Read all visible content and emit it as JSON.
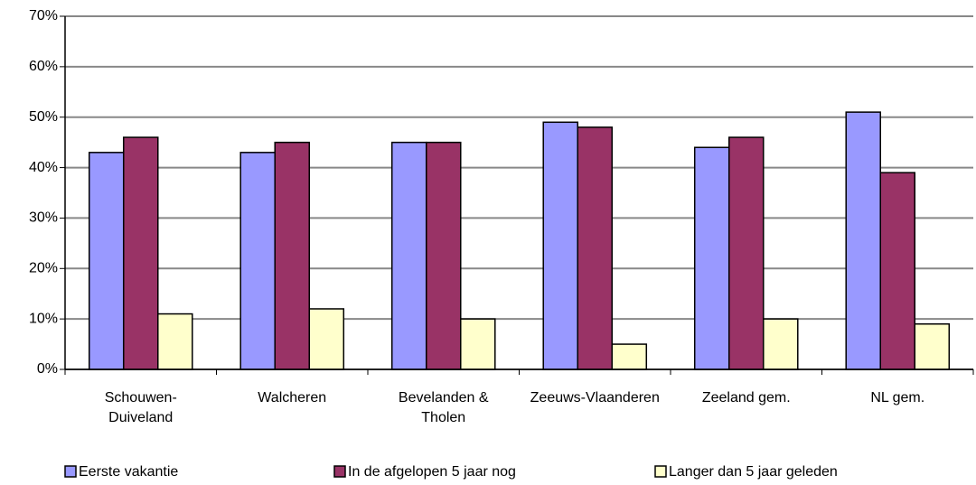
{
  "chart_data": {
    "type": "bar",
    "categories": [
      "Schouwen-Duiveland",
      "Walcheren",
      "Bevelanden & Tholen",
      "Zeeuws-Vlaanderen",
      "Zeeland gem.",
      "NL gem."
    ],
    "series": [
      {
        "name": "Eerste vakantie",
        "color": "#9999ff",
        "values": [
          43,
          43,
          45,
          49,
          44,
          51
        ]
      },
      {
        "name": "In de afgelopen 5 jaar nog",
        "color": "#993366",
        "values": [
          46,
          45,
          45,
          48,
          46,
          39
        ]
      },
      {
        "name": "Langer dan 5 jaar geleden",
        "color": "#ffffcc",
        "values": [
          11,
          12,
          10,
          5,
          10,
          9
        ]
      }
    ],
    "ylim": [
      0,
      70
    ],
    "yticks": [
      {
        "value": 0,
        "label": "0%"
      },
      {
        "value": 10,
        "label": "10%"
      },
      {
        "value": 20,
        "label": "20%"
      },
      {
        "value": 30,
        "label": "30%"
      },
      {
        "value": 40,
        "label": "40%"
      },
      {
        "value": 50,
        "label": "50%"
      },
      {
        "value": 60,
        "label": "60%"
      },
      {
        "value": 70,
        "label": "70%"
      }
    ],
    "grid": true,
    "legend": "bottom"
  }
}
